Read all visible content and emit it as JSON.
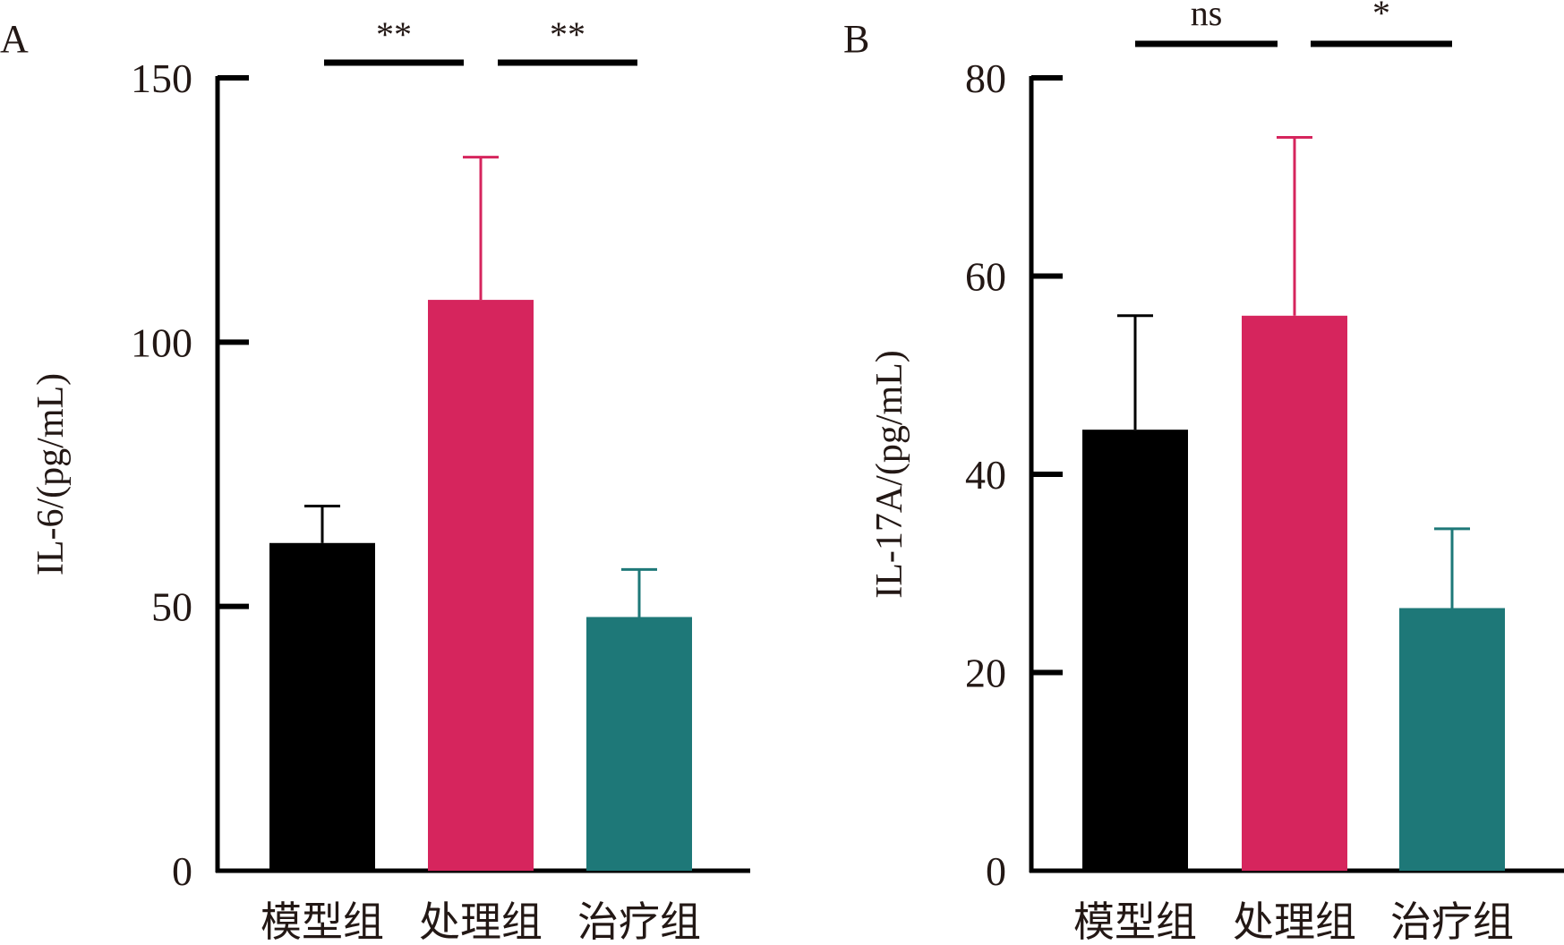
{
  "chart_data": [
    {
      "type": "bar",
      "panel": "A",
      "ylabel": "IL-6/(pg/mL)",
      "ylim": [
        0,
        150
      ],
      "yticks": [
        0,
        50,
        100,
        150
      ],
      "categories": [
        "模型组",
        "处理组",
        "治疗组"
      ],
      "values": [
        62,
        108,
        48
      ],
      "errors": [
        7,
        27,
        9
      ],
      "colors": [
        "#000000",
        "#d6255d",
        "#1e7878"
      ],
      "significance": [
        {
          "from": 0,
          "to": 1,
          "label": "**"
        },
        {
          "from": 1,
          "to": 2,
          "label": "**"
        }
      ]
    },
    {
      "type": "bar",
      "panel": "B",
      "ylabel": "IL-17A/(pg/mL)",
      "ylim": [
        0,
        80
      ],
      "yticks": [
        0,
        20,
        40,
        60,
        80
      ],
      "categories": [
        "模型组",
        "处理组",
        "治疗组"
      ],
      "values": [
        44.5,
        56,
        26.5
      ],
      "errors": [
        11.5,
        18,
        8
      ],
      "colors": [
        "#000000",
        "#d6255d",
        "#1e7878"
      ],
      "significance": [
        {
          "from": 0,
          "to": 1,
          "label": "ns"
        },
        {
          "from": 1,
          "to": 2,
          "label": "*"
        }
      ]
    }
  ]
}
